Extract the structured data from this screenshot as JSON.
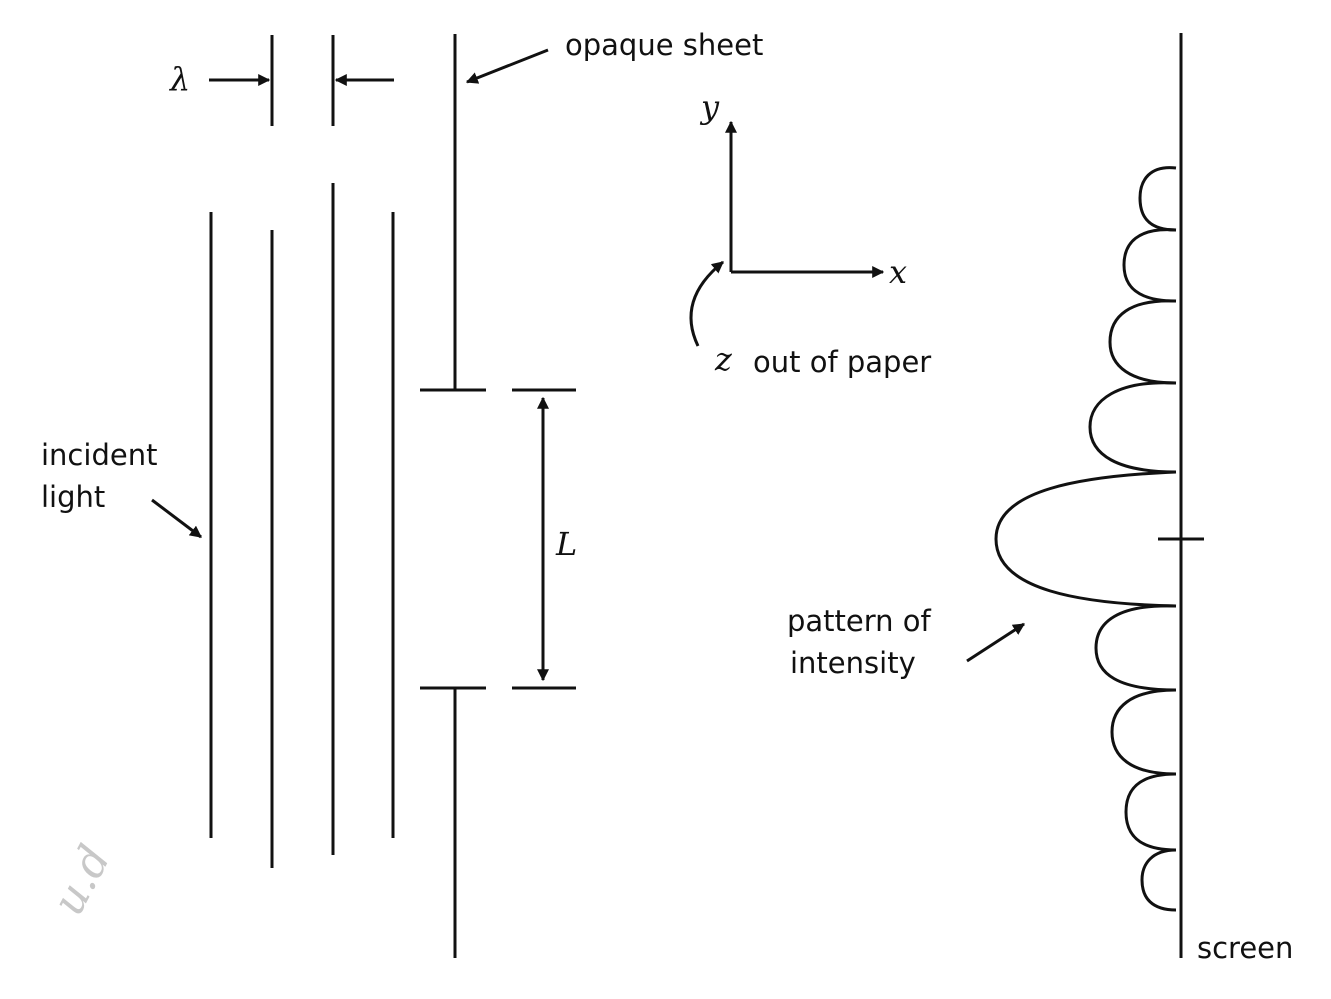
{
  "labels": {
    "opaque_sheet": "opaque sheet",
    "lambda": "λ",
    "incident_light_line1": "incident",
    "incident_light_line2": "light",
    "y_axis": "y",
    "x_axis": "x",
    "z_axis": "z",
    "z_note": "out of paper",
    "L": "L",
    "pattern_line1": "pattern of",
    "pattern_line2": "intensity",
    "screen": "screen",
    "handwritten": "u.d"
  },
  "intensity_pattern": {
    "central_max_halfwidth": 1.0,
    "side_lobes_per_side": 4,
    "side_lobe_spacing": 1.0
  },
  "colors": {
    "ink": "#111111",
    "paper": "#ffffff",
    "pencil": "#c8c8c8"
  }
}
